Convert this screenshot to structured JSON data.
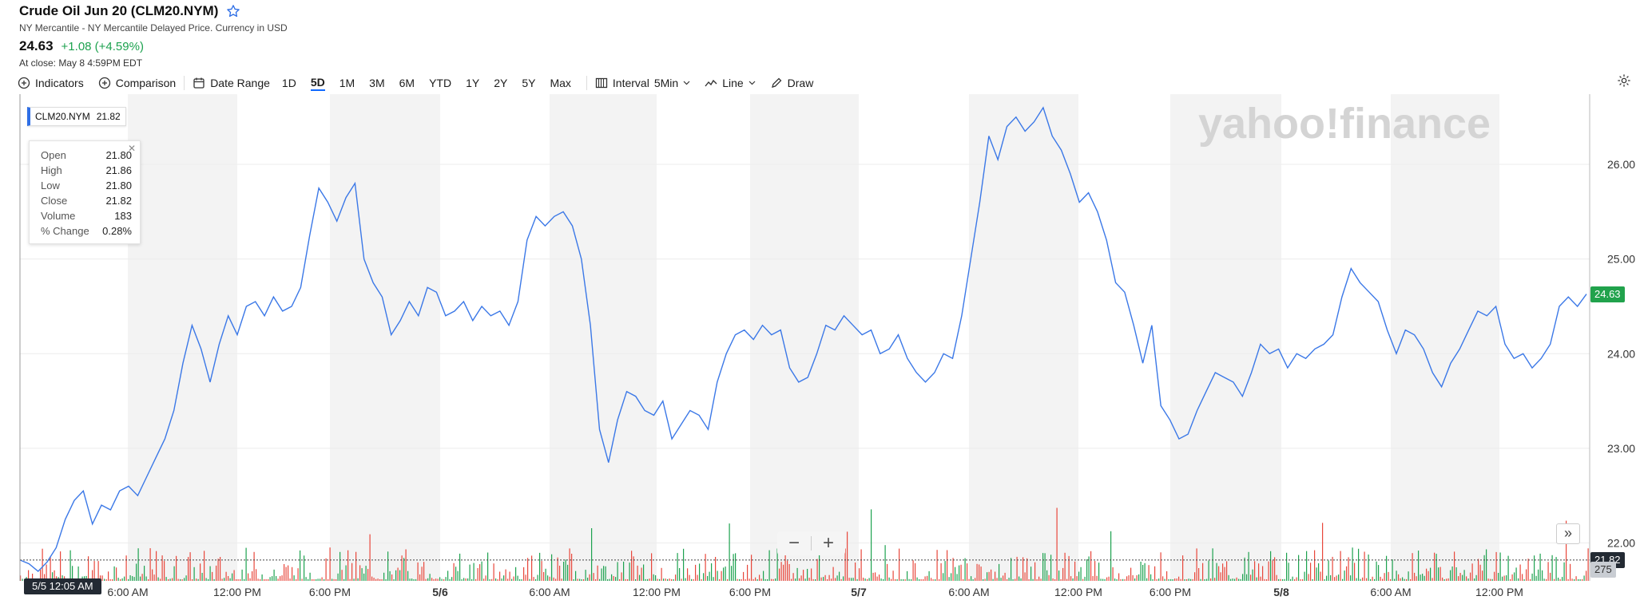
{
  "header": {
    "title": "Crude Oil Jun 20 (CLM20.NYM)",
    "subtitle": "NY Mercantile - NY Mercantile Delayed Price. Currency in USD",
    "price": "24.63",
    "change": "+1.08 (+4.59%)",
    "close_time": "At close: May 8 4:59PM EDT"
  },
  "toolbar": {
    "indicators": "Indicators",
    "comparison": "Comparison",
    "date_range": "Date Range",
    "ranges": [
      "1D",
      "5D",
      "1M",
      "3M",
      "6M",
      "YTD",
      "1Y",
      "2Y",
      "5Y",
      "Max"
    ],
    "active_range": "5D",
    "interval": "Interval",
    "interval_value": "5Min",
    "chart_type": "Line",
    "draw": "Draw"
  },
  "info_tag": {
    "symbol": "CLM20.NYM",
    "value": "21.82"
  },
  "ohlc": {
    "open_label": "Open",
    "open": "21.80",
    "high_label": "High",
    "high": "21.86",
    "low_label": "Low",
    "low": "21.80",
    "close_label": "Close",
    "close": "21.82",
    "volume_label": "Volume",
    "volume": "183",
    "pct_label": "% Change",
    "pct": "0.28%"
  },
  "zoom": {
    "minus": "−",
    "plus": "+"
  },
  "expand_label": "»",
  "watermark": "yahoo!finance",
  "crosshair_date": "5/5 12:05 AM",
  "colors": {
    "line": "#3b78e7",
    "up": "#1da24f",
    "down": "#e8473b",
    "accent": "#0f69ff",
    "price_tag": "#21a24c"
  },
  "chart_data": {
    "type": "line",
    "title": "",
    "xlabel": "",
    "ylabel": "",
    "x_ticks": [
      "6:00 AM",
      "12:00 PM",
      "6:00 PM",
      "5/6",
      "6:00 AM",
      "12:00 PM",
      "6:00 PM",
      "5/7",
      "6:00 AM",
      "12:00 PM",
      "6:00 PM",
      "5/8",
      "6:00 AM",
      "12:00 PM"
    ],
    "y_ticks": [
      "22.00",
      "23.00",
      "24.00",
      "25.00",
      "26.00"
    ],
    "ylim": [
      21.6,
      26.7
    ],
    "last_price": "24.63",
    "crosshair_price": "21.82",
    "volume_label": "275",
    "grid": true,
    "series": [
      {
        "values": [
          21.82,
          21.78,
          21.7,
          21.8,
          21.95,
          22.25,
          22.45,
          22.55,
          22.2,
          22.4,
          22.35,
          22.55,
          22.6,
          22.5,
          22.7,
          22.9,
          23.1,
          23.4,
          23.9,
          24.3,
          24.05,
          23.7,
          24.1,
          24.4,
          24.2,
          24.5,
          24.55,
          24.4,
          24.6,
          24.45,
          24.5,
          24.7,
          25.25,
          25.75,
          25.6,
          25.4,
          25.65,
          25.8,
          25.0,
          24.75,
          24.6,
          24.2,
          24.35,
          24.55,
          24.4,
          24.7,
          24.65,
          24.4,
          24.45,
          24.55,
          24.35,
          24.5,
          24.4,
          24.45,
          24.3,
          24.55,
          25.2,
          25.45,
          25.35,
          25.45,
          25.5,
          25.35,
          25.0,
          24.3,
          23.2,
          22.85,
          23.3,
          23.6,
          23.55,
          23.4,
          23.35,
          23.5,
          23.1,
          23.25,
          23.4,
          23.35,
          23.2,
          23.7,
          24.0,
          24.2,
          24.25,
          24.15,
          24.3,
          24.2,
          24.25,
          23.85,
          23.7,
          23.75,
          24.0,
          24.3,
          24.25,
          24.4,
          24.3,
          24.2,
          24.25,
          24.0,
          24.05,
          24.2,
          23.95,
          23.8,
          23.7,
          23.8,
          24.0,
          23.95,
          24.4,
          25.0,
          25.6,
          26.3,
          26.05,
          26.4,
          26.5,
          26.35,
          26.45,
          26.6,
          26.3,
          26.15,
          25.9,
          25.6,
          25.7,
          25.5,
          25.2,
          24.75,
          24.65,
          24.3,
          23.9,
          24.3,
          23.45,
          23.3,
          23.1,
          23.15,
          23.4,
          23.6,
          23.8,
          23.75,
          23.7,
          23.55,
          23.8,
          24.1,
          24.0,
          24.05,
          23.85,
          24.0,
          23.95,
          24.05,
          24.1,
          24.2,
          24.6,
          24.9,
          24.75,
          24.65,
          24.55,
          24.25,
          24.0,
          24.25,
          24.2,
          24.05,
          23.8,
          23.65,
          23.9,
          24.05,
          24.25,
          24.45,
          24.4,
          24.5,
          24.1,
          23.95,
          24.0,
          23.85,
          23.95,
          24.1,
          24.5,
          24.6,
          24.5,
          24.63
        ]
      }
    ]
  }
}
